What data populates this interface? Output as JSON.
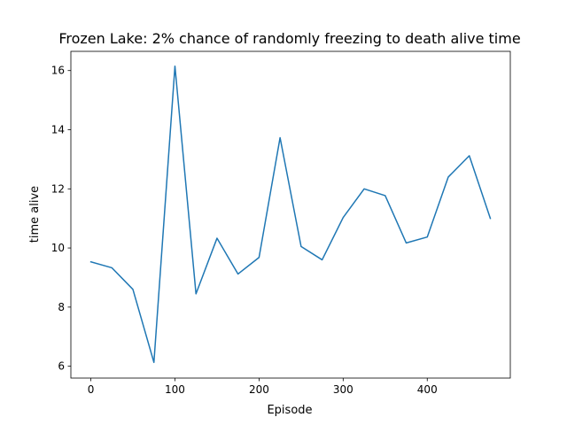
{
  "chart_data": {
    "type": "line",
    "title": "Frozen Lake: 2% chance of randomly freezing to death alive time",
    "xlabel": "Episode",
    "ylabel": "time alive",
    "xlim": [
      -23.75,
      498.75
    ],
    "ylim": [
      5.6,
      16.65
    ],
    "x_ticks": [
      0,
      100,
      200,
      300,
      400
    ],
    "y_ticks": [
      6,
      8,
      10,
      12,
      14,
      16
    ],
    "grid": false,
    "legend": "none",
    "series": [
      {
        "color": "#1f77b4",
        "x": [
          0,
          25,
          50,
          75,
          100,
          125,
          150,
          175,
          200,
          225,
          250,
          275,
          300,
          325,
          350,
          375,
          400,
          425,
          450,
          475
        ],
        "values": [
          9.53,
          9.33,
          8.6,
          6.13,
          16.15,
          8.45,
          10.33,
          9.12,
          9.68,
          13.73,
          10.05,
          9.6,
          11.03,
          12.0,
          11.77,
          10.17,
          10.37,
          12.4,
          13.12,
          11.0
        ]
      }
    ]
  }
}
